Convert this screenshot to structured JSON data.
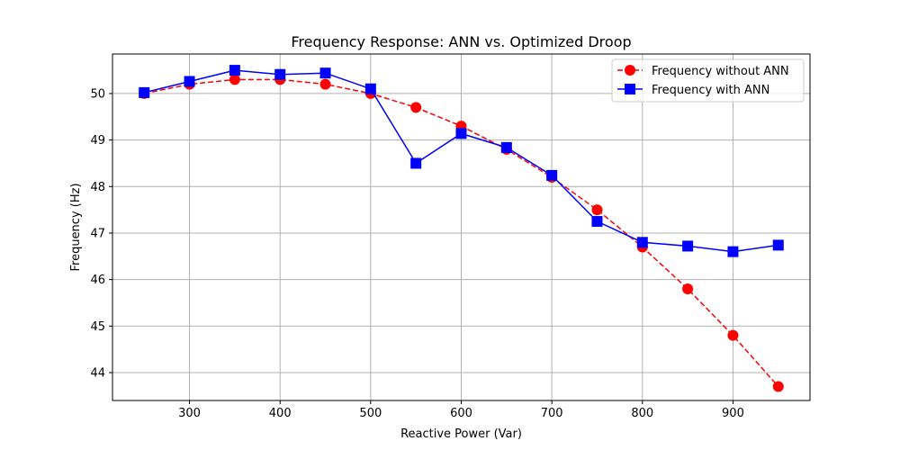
{
  "chart_data": {
    "type": "line",
    "title": "Frequency Response: ANN vs. Optimized Droop",
    "xlabel": "Reactive Power (Var)",
    "ylabel": "Frequency (Hz)",
    "xlim": [
      215,
      985
    ],
    "ylim": [
      43.4,
      50.85
    ],
    "xticks": [
      300,
      400,
      500,
      600,
      700,
      800,
      900
    ],
    "yticks": [
      44,
      45,
      46,
      47,
      48,
      49,
      50
    ],
    "grid": true,
    "legend_position": "top-right",
    "x": [
      250,
      300,
      350,
      400,
      450,
      500,
      550,
      600,
      650,
      700,
      750,
      800,
      850,
      900,
      950
    ],
    "series": [
      {
        "name": "Frequency without ANN",
        "color": "#ff0000",
        "line_style": "dashed",
        "marker": "circle",
        "values": [
          50.0,
          50.2,
          50.3,
          50.3,
          50.2,
          50.0,
          49.7,
          49.3,
          48.8,
          48.2,
          47.5,
          46.7,
          45.8,
          44.8,
          43.7
        ]
      },
      {
        "name": "Frequency with ANN",
        "color": "#0000ff",
        "line_style": "solid",
        "marker": "square",
        "values": [
          50.02,
          50.26,
          50.5,
          50.41,
          50.44,
          50.1,
          48.5,
          49.14,
          48.84,
          48.24,
          47.25,
          46.8,
          46.72,
          46.6,
          46.74
        ]
      }
    ]
  }
}
